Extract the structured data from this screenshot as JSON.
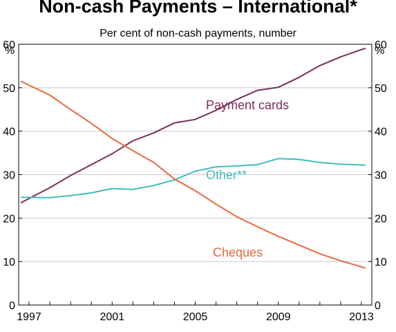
{
  "chart_data": {
    "type": "line",
    "title": "Non-cash Payments – International*",
    "subtitle": "Per cent of non-cash payments, number",
    "y_unit_left": "%",
    "y_unit_right": "%",
    "ylim": [
      0,
      60
    ],
    "yticks": [
      0,
      10,
      20,
      30,
      40,
      50,
      60
    ],
    "xlim": [
      1996.5,
      2013.5
    ],
    "xticks": [
      1997,
      2001,
      2005,
      2009,
      2013
    ],
    "grid": true,
    "series": [
      {
        "name": "Payment cards",
        "color": "#7b2d5c",
        "x": [
          1996.6,
          1998,
          1999,
          2000,
          2001,
          2002,
          2003,
          2004,
          2005,
          2006,
          2007,
          2008,
          2009,
          2010,
          2011,
          2012,
          2013.2
        ],
        "values": [
          23.5,
          27,
          29.8,
          32.3,
          34.8,
          37.8,
          39.6,
          41.9,
          42.7,
          44.8,
          47.3,
          49.4,
          50.1,
          52.4,
          55.1,
          57.1,
          59.1
        ]
      },
      {
        "name": "Other**",
        "color": "#3fbdbd",
        "x": [
          1996.6,
          1998,
          1999,
          2000,
          2001,
          2002,
          2003,
          2004,
          2005,
          2006,
          2007,
          2008,
          2009,
          2010,
          2011,
          2012,
          2013.2
        ],
        "values": [
          24.8,
          24.7,
          25.2,
          25.8,
          26.8,
          26.6,
          27.5,
          28.8,
          30.8,
          31.8,
          32.0,
          32.3,
          33.7,
          33.5,
          32.8,
          32.4,
          32.2
        ]
      },
      {
        "name": "Cheques",
        "color": "#e8693c",
        "x": [
          1996.6,
          1998,
          1999,
          2000,
          2001,
          2002,
          2003,
          2004,
          2005,
          2006,
          2007,
          2008,
          2009,
          2010,
          2011,
          2012,
          2013.2
        ],
        "values": [
          51.5,
          48.3,
          45.0,
          41.8,
          38.3,
          35.5,
          32.8,
          29.0,
          26.3,
          23.2,
          20.3,
          18.0,
          15.8,
          13.8,
          11.8,
          10.2,
          8.5
        ]
      }
    ]
  }
}
